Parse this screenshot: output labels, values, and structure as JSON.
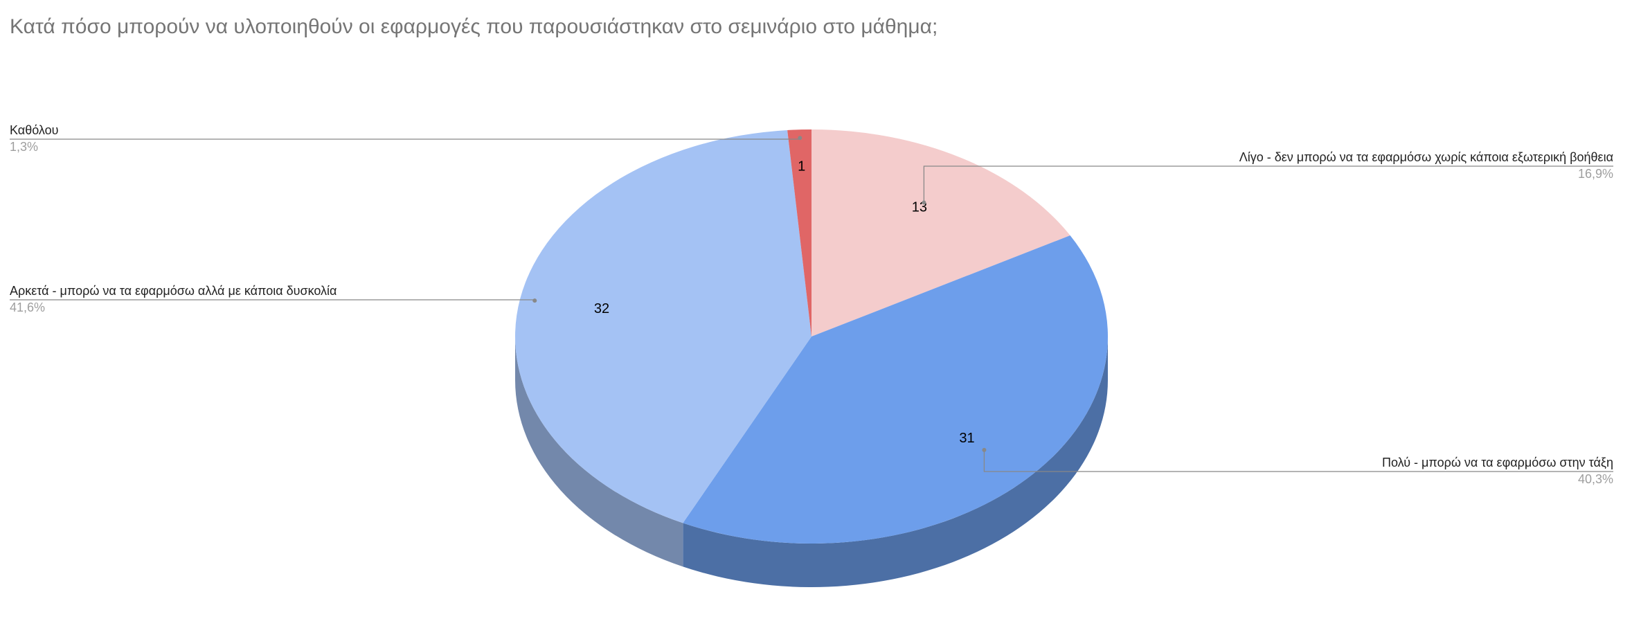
{
  "chart_data": {
    "type": "pie3d",
    "title": "Κατά πόσο μπορούν να υλοποιηθούν οι εφαρμογές που παρουσιάστηκαν στο σεμινάριο στο μάθημα;",
    "categories": [
      "Λίγο - δεν μπορώ να τα εφαρμόσω χωρίς κάποια εξωτερική βοήθεια",
      "Πολύ - μπορώ να τα εφαρμόσω στην τάξη",
      "Αρκετά -  μπορώ να τα εφαρμόσω αλλά με κάποια δυσκολία",
      "Καθόλου"
    ],
    "values": [
      13,
      31,
      32,
      1
    ],
    "percent_labels": [
      "16,9%",
      "40,3%",
      "41,6%",
      "1,3%"
    ],
    "colors": [
      "#f4cccc",
      "#6d9eeb",
      "#a4c2f4",
      "#e06666"
    ]
  }
}
